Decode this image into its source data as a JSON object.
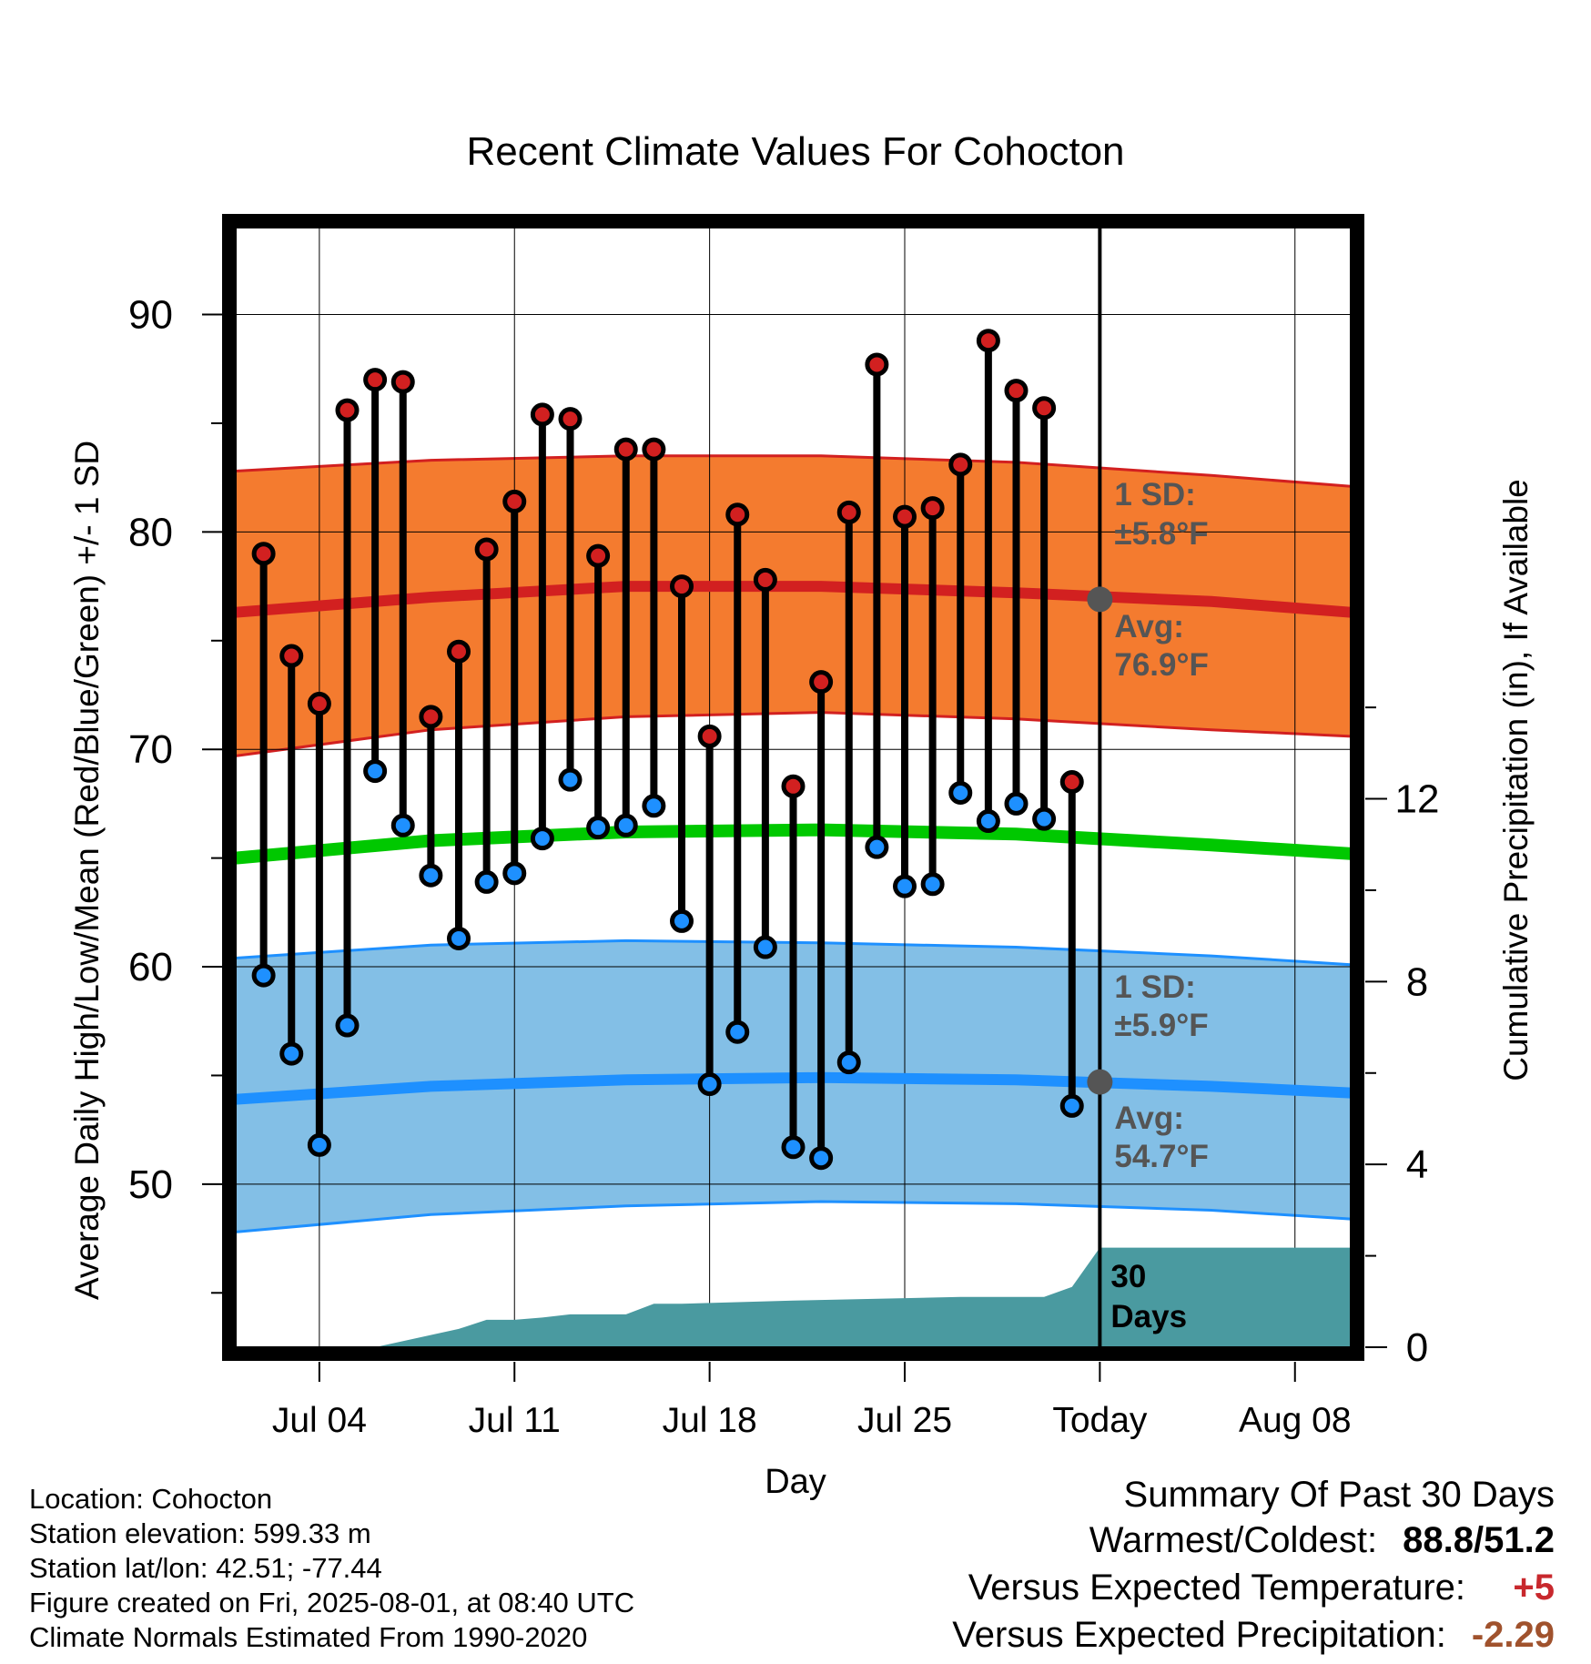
{
  "chart_data": {
    "type": "line",
    "title": "Recent Climate Values For Cohocton",
    "xlabel": "Day",
    "ylabel": "Average Daily High/Low/Mean (Red/Blue/Green) +/- 1 SD",
    "y2label": "Cumulative Precipitation (in), If Available",
    "ylim": [
      42.5,
      94
    ],
    "y2lim": [
      0,
      24.5
    ],
    "xlim": [
      "2025-07-01",
      "2025-08-10"
    ],
    "x_tick_labels": [
      {
        "date": "2025-07-04",
        "label": "Jul 04"
      },
      {
        "date": "2025-07-11",
        "label": "Jul 11"
      },
      {
        "date": "2025-07-18",
        "label": "Jul 18"
      },
      {
        "date": "2025-07-25",
        "label": "Jul 25"
      },
      {
        "date": "2025-08-01",
        "label": "Today"
      },
      {
        "date": "2025-08-08",
        "label": "Aug 08"
      }
    ],
    "y_ticks": [
      50,
      60,
      70,
      80,
      90
    ],
    "y2_ticks": [
      0,
      4,
      8,
      12
    ],
    "grid": true,
    "today": "2025-08-01",
    "daily": {
      "dates": [
        "2025-07-02",
        "2025-07-03",
        "2025-07-04",
        "2025-07-05",
        "2025-07-06",
        "2025-07-07",
        "2025-07-08",
        "2025-07-09",
        "2025-07-10",
        "2025-07-11",
        "2025-07-12",
        "2025-07-13",
        "2025-07-14",
        "2025-07-15",
        "2025-07-16",
        "2025-07-17",
        "2025-07-18",
        "2025-07-19",
        "2025-07-20",
        "2025-07-21",
        "2025-07-22",
        "2025-07-23",
        "2025-07-24",
        "2025-07-25",
        "2025-07-26",
        "2025-07-27",
        "2025-07-28",
        "2025-07-29",
        "2025-07-30",
        "2025-07-31"
      ],
      "high": [
        79.0,
        74.3,
        72.1,
        85.6,
        87.0,
        86.9,
        71.5,
        74.5,
        79.2,
        81.4,
        85.4,
        85.2,
        78.9,
        83.8,
        83.8,
        77.5,
        70.6,
        80.8,
        77.8,
        68.3,
        73.1,
        80.9,
        87.7,
        80.7,
        81.1,
        83.1,
        88.8,
        86.5,
        85.7,
        68.5
      ],
      "low": [
        59.6,
        56.0,
        51.8,
        57.3,
        69.0,
        66.5,
        64.2,
        61.3,
        63.9,
        64.3,
        65.9,
        68.6,
        66.4,
        66.5,
        67.4,
        62.1,
        54.6,
        57.0,
        60.9,
        51.7,
        51.2,
        55.6,
        65.5,
        63.7,
        63.8,
        68.0,
        66.7,
        67.5,
        66.8,
        53.6
      ]
    },
    "normals": {
      "dates": [
        "2025-07-01",
        "2025-07-08",
        "2025-07-15",
        "2025-07-22",
        "2025-07-29",
        "2025-08-05",
        "2025-08-10"
      ],
      "high_avg": [
        76.3,
        77.0,
        77.5,
        77.5,
        77.2,
        76.8,
        76.3
      ],
      "high_upper": [
        82.8,
        83.3,
        83.5,
        83.5,
        83.2,
        82.6,
        82.1
      ],
      "high_lower": [
        69.7,
        70.9,
        71.5,
        71.7,
        71.4,
        70.9,
        70.6
      ],
      "low_avg": [
        53.9,
        54.5,
        54.8,
        54.9,
        54.8,
        54.5,
        54.2
      ],
      "low_upper": [
        60.4,
        61.0,
        61.2,
        61.1,
        60.9,
        60.5,
        60.1
      ],
      "low_lower": [
        47.8,
        48.6,
        49.0,
        49.2,
        49.1,
        48.8,
        48.4
      ],
      "mean": [
        65.0,
        65.8,
        66.2,
        66.3,
        66.1,
        65.6,
        65.2
      ]
    },
    "precip_cumulative": {
      "dates": [
        "2025-07-01",
        "2025-07-06",
        "2025-07-09",
        "2025-07-10",
        "2025-07-11",
        "2025-07-12",
        "2025-07-13",
        "2025-07-15",
        "2025-07-16",
        "2025-07-17",
        "2025-07-21",
        "2025-07-27",
        "2025-07-30",
        "2025-07-31",
        "2025-08-01",
        "2025-08-10"
      ],
      "values": [
        0,
        0,
        0.4,
        0.6,
        0.6,
        0.65,
        0.72,
        0.72,
        0.95,
        0.95,
        1.02,
        1.1,
        1.1,
        1.32,
        2.18,
        2.18
      ]
    },
    "annotations": {
      "high_sd_label": "1 SD:",
      "high_sd_value": "±5.8°F",
      "high_avg_label": "Avg:",
      "high_avg_value": "76.9°F",
      "high_avg_today": 76.9,
      "low_sd_label": "1 SD:",
      "low_sd_value": "±5.9°F",
      "low_avg_label": "Avg:",
      "low_avg_value": "54.7°F",
      "low_avg_today": 54.7,
      "precip_days_line1": "30",
      "precip_days_line2": "Days"
    },
    "colors": {
      "high_band": "#f47b2f",
      "high_line": "#d22020",
      "low_band": "#83bfe6",
      "low_line": "#1e90ff",
      "mean_line": "#00c800",
      "precip_fill": "#4a9aa0",
      "annotation_text": "#555555",
      "today_marker": "#555555"
    }
  },
  "footer": {
    "location": "Location: Cohocton",
    "elevation": "Station elevation: 599.33 m",
    "latlon": "Station lat/lon: 42.51; -77.44",
    "created": "Figure created on Fri, 2025-08-01, at 08:40 UTC",
    "normals": "Climate Normals Estimated From 1990-2020"
  },
  "summary": {
    "title": "Summary Of Past 30 Days",
    "warm_cold_label": "Warmest/Coldest:",
    "warmest": "88.8",
    "separator": "/",
    "coldest": "51.2",
    "temp_label": "Versus Expected Temperature:",
    "temp_value": "+5",
    "temp_color": "#c8282d",
    "precip_label": "Versus Expected Precipitation:",
    "precip_value": "-2.29",
    "precip_color": "#a0522d"
  }
}
